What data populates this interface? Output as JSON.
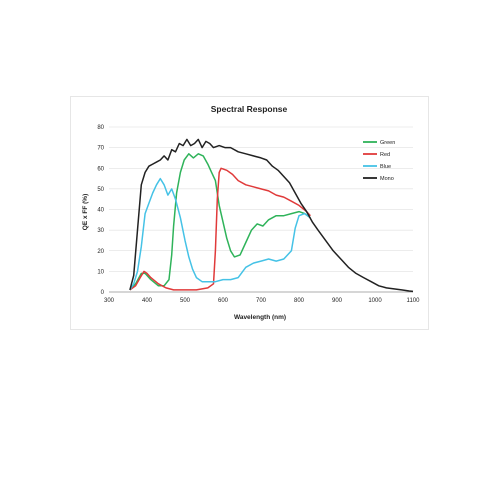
{
  "chart_data": {
    "type": "line",
    "title": "Spectral Response",
    "xlabel": "Wavelength (nm)",
    "ylabel": "QE x FF (%)",
    "xlim": [
      300,
      1100
    ],
    "ylim": [
      0,
      80
    ],
    "xticks": [
      300,
      400,
      500,
      600,
      700,
      800,
      900,
      1000,
      1100
    ],
    "yticks": [
      0,
      10,
      20,
      30,
      40,
      50,
      60,
      70,
      80
    ],
    "grid": true,
    "legend_position": "top-right",
    "series": [
      {
        "name": "Green",
        "color": "#2fb35a",
        "points": [
          [
            355,
            1
          ],
          [
            370,
            4
          ],
          [
            385,
            9
          ],
          [
            395,
            9
          ],
          [
            410,
            6
          ],
          [
            430,
            3
          ],
          [
            445,
            3
          ],
          [
            458,
            6
          ],
          [
            465,
            18
          ],
          [
            470,
            32
          ],
          [
            478,
            48
          ],
          [
            488,
            58
          ],
          [
            498,
            64
          ],
          [
            510,
            67
          ],
          [
            522,
            65
          ],
          [
            535,
            67
          ],
          [
            548,
            66
          ],
          [
            560,
            62
          ],
          [
            570,
            58
          ],
          [
            580,
            54
          ],
          [
            590,
            42
          ],
          [
            600,
            34
          ],
          [
            610,
            26
          ],
          [
            620,
            20
          ],
          [
            630,
            17
          ],
          [
            645,
            18
          ],
          [
            660,
            24
          ],
          [
            675,
            30
          ],
          [
            690,
            33
          ],
          [
            705,
            32
          ],
          [
            720,
            35
          ],
          [
            740,
            37
          ],
          [
            760,
            37
          ],
          [
            780,
            38
          ],
          [
            800,
            39
          ],
          [
            815,
            38
          ],
          [
            830,
            36
          ]
        ]
      },
      {
        "name": "Red",
        "color": "#e03a3a",
        "points": [
          [
            355,
            1
          ],
          [
            370,
            3
          ],
          [
            382,
            7
          ],
          [
            392,
            10
          ],
          [
            400,
            9
          ],
          [
            410,
            7
          ],
          [
            430,
            4
          ],
          [
            450,
            2
          ],
          [
            470,
            1
          ],
          [
            500,
            1
          ],
          [
            530,
            1
          ],
          [
            560,
            2
          ],
          [
            575,
            4
          ],
          [
            580,
            20
          ],
          [
            585,
            45
          ],
          [
            590,
            58
          ],
          [
            595,
            60
          ],
          [
            610,
            59
          ],
          [
            625,
            57
          ],
          [
            640,
            54
          ],
          [
            660,
            52
          ],
          [
            680,
            51
          ],
          [
            700,
            50
          ],
          [
            720,
            49
          ],
          [
            740,
            47
          ],
          [
            760,
            46
          ],
          [
            780,
            44
          ],
          [
            800,
            42
          ],
          [
            820,
            39
          ],
          [
            830,
            37
          ]
        ]
      },
      {
        "name": "Blue",
        "color": "#45c2e6",
        "points": [
          [
            355,
            1
          ],
          [
            365,
            4
          ],
          [
            375,
            10
          ],
          [
            385,
            22
          ],
          [
            395,
            38
          ],
          [
            405,
            43
          ],
          [
            415,
            48
          ],
          [
            425,
            52
          ],
          [
            435,
            55
          ],
          [
            445,
            52
          ],
          [
            455,
            47
          ],
          [
            465,
            50
          ],
          [
            475,
            45
          ],
          [
            488,
            36
          ],
          [
            500,
            25
          ],
          [
            510,
            17
          ],
          [
            520,
            11
          ],
          [
            530,
            7
          ],
          [
            545,
            5
          ],
          [
            560,
            5
          ],
          [
            580,
            5
          ],
          [
            600,
            6
          ],
          [
            620,
            6
          ],
          [
            640,
            7
          ],
          [
            660,
            12
          ],
          [
            680,
            14
          ],
          [
            700,
            15
          ],
          [
            720,
            16
          ],
          [
            740,
            15
          ],
          [
            760,
            16
          ],
          [
            780,
            20
          ],
          [
            790,
            31
          ],
          [
            800,
            37
          ],
          [
            815,
            38
          ],
          [
            830,
            36
          ]
        ]
      },
      {
        "name": "Mono",
        "color": "#222222",
        "points": [
          [
            355,
            1
          ],
          [
            365,
            8
          ],
          [
            375,
            30
          ],
          [
            385,
            52
          ],
          [
            395,
            58
          ],
          [
            405,
            61
          ],
          [
            415,
            62
          ],
          [
            425,
            63
          ],
          [
            435,
            64
          ],
          [
            445,
            66
          ],
          [
            455,
            64
          ],
          [
            465,
            69
          ],
          [
            475,
            68
          ],
          [
            485,
            72
          ],
          [
            495,
            71
          ],
          [
            505,
            74
          ],
          [
            515,
            71
          ],
          [
            525,
            72
          ],
          [
            535,
            74
          ],
          [
            545,
            70
          ],
          [
            555,
            73
          ],
          [
            565,
            72
          ],
          [
            575,
            70
          ],
          [
            590,
            71
          ],
          [
            605,
            70
          ],
          [
            620,
            70
          ],
          [
            640,
            68
          ],
          [
            660,
            67
          ],
          [
            680,
            66
          ],
          [
            700,
            65
          ],
          [
            715,
            64
          ],
          [
            730,
            61
          ],
          [
            745,
            59
          ],
          [
            760,
            56
          ],
          [
            775,
            53
          ],
          [
            790,
            48
          ],
          [
            805,
            43
          ],
          [
            820,
            39
          ],
          [
            835,
            34
          ],
          [
            850,
            30
          ],
          [
            870,
            25
          ],
          [
            890,
            20
          ],
          [
            910,
            16
          ],
          [
            930,
            12
          ],
          [
            950,
            9
          ],
          [
            970,
            7
          ],
          [
            990,
            5
          ],
          [
            1010,
            3
          ],
          [
            1030,
            2
          ],
          [
            1050,
            1.5
          ],
          [
            1070,
            1
          ],
          [
            1090,
            0.5
          ],
          [
            1100,
            0.3
          ]
        ]
      }
    ]
  }
}
